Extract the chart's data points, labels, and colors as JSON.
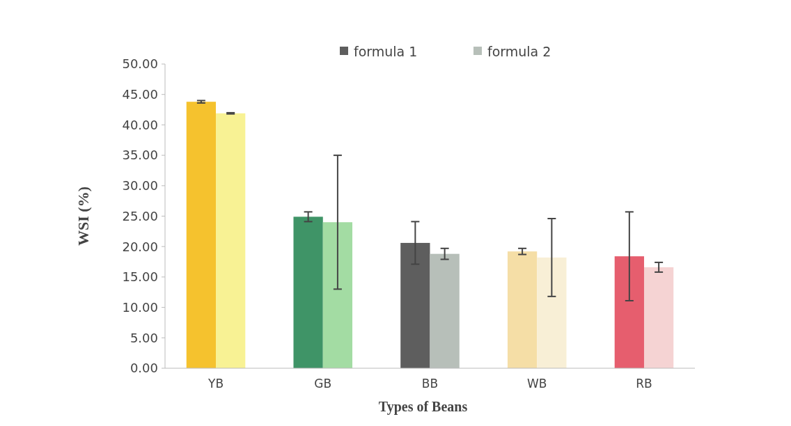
{
  "chart_data": {
    "type": "bar",
    "xlabel": "Types of Beans",
    "ylabel": "WSI (%)",
    "categories": [
      "YB",
      "GB",
      "BB",
      "WB",
      "RB"
    ],
    "series": [
      {
        "name": "formula 1",
        "color": "#5e5e5e",
        "colors": [
          "#f5c22e",
          "#3f9467",
          "#5e5e5e",
          "#f5dea6",
          "#e65e6e"
        ],
        "values": [
          43.8,
          24.9,
          20.6,
          19.2,
          18.4
        ],
        "errors": [
          0.2,
          0.8,
          3.5,
          0.5,
          7.3
        ]
      },
      {
        "name": "formula 2",
        "color": "#b7bfb9",
        "colors": [
          "#f8f294",
          "#a3dca3",
          "#b7bfb9",
          "#f8efd6",
          "#f5d3d3"
        ],
        "values": [
          41.9,
          24.0,
          18.8,
          18.2,
          16.6
        ],
        "errors": [
          0.1,
          11.0,
          0.9,
          6.4,
          0.8
        ]
      }
    ],
    "ylim": [
      0,
      50
    ],
    "yticks": [
      {
        "value": 0,
        "label": "0.00"
      },
      {
        "value": 5,
        "label": "5.00"
      },
      {
        "value": 10,
        "label": "10.00"
      },
      {
        "value": 15,
        "label": "15.00"
      },
      {
        "value": 20,
        "label": "20.00"
      },
      {
        "value": 25,
        "label": "25.00"
      },
      {
        "value": 30,
        "label": "30.00"
      },
      {
        "value": 35,
        "label": "35.00"
      },
      {
        "value": 40,
        "label": "40.00"
      },
      {
        "value": 45,
        "label": "45.00"
      },
      {
        "value": 50,
        "label": "50.00"
      }
    ],
    "grid": false,
    "legend": "top"
  }
}
